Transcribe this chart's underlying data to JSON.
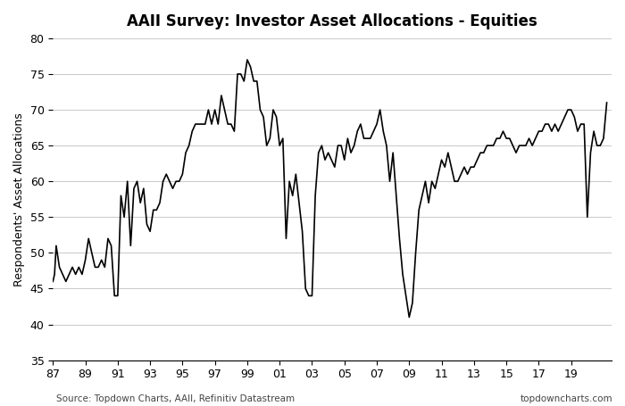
{
  "title": "AAII Survey: Investor Asset Allocations - Equities",
  "ylabel": "Respondents' Asset Allocations",
  "source_left": "Source: Topdown Charts, AAll, Refinitiv Datastream",
  "source_right": "topdowncharts.com",
  "ylim": [
    35,
    80
  ],
  "yticks": [
    35,
    40,
    45,
    50,
    55,
    60,
    65,
    70,
    75,
    80
  ],
  "xtick_years": [
    1987,
    1989,
    1991,
    1993,
    1995,
    1997,
    1999,
    2001,
    2003,
    2005,
    2007,
    2009,
    2011,
    2013,
    2015,
    2017,
    2019
  ],
  "xtick_labels": [
    "87",
    "89",
    "91",
    "93",
    "95",
    "97",
    "99",
    "01",
    "03",
    "05",
    "07",
    "09",
    "11",
    "13",
    "15",
    "17",
    "19"
  ],
  "line_color": "#000000",
  "line_width": 1.2,
  "bg_color": "#ffffff",
  "grid_color": "#cccccc",
  "data": {
    "dates": [
      1987.0,
      1987.1,
      1987.2,
      1987.4,
      1987.6,
      1987.8,
      1988.0,
      1988.2,
      1988.4,
      1988.6,
      1988.8,
      1989.0,
      1989.2,
      1989.4,
      1989.6,
      1989.8,
      1990.0,
      1990.2,
      1990.4,
      1990.6,
      1990.8,
      1991.0,
      1991.2,
      1991.4,
      1991.6,
      1991.8,
      1992.0,
      1992.2,
      1992.4,
      1992.6,
      1992.8,
      1993.0,
      1993.2,
      1993.4,
      1993.6,
      1993.8,
      1994.0,
      1994.2,
      1994.4,
      1994.6,
      1994.8,
      1995.0,
      1995.2,
      1995.4,
      1995.6,
      1995.8,
      1996.0,
      1996.2,
      1996.4,
      1996.6,
      1996.8,
      1997.0,
      1997.2,
      1997.4,
      1997.6,
      1997.8,
      1998.0,
      1998.2,
      1998.4,
      1998.6,
      1998.8,
      1999.0,
      1999.2,
      1999.4,
      1999.6,
      1999.8,
      2000.0,
      2000.2,
      2000.4,
      2000.6,
      2000.8,
      2001.0,
      2001.2,
      2001.4,
      2001.6,
      2001.8,
      2002.0,
      2002.2,
      2002.4,
      2002.6,
      2002.8,
      2003.0,
      2003.2,
      2003.4,
      2003.6,
      2003.8,
      2004.0,
      2004.2,
      2004.4,
      2004.6,
      2004.8,
      2005.0,
      2005.2,
      2005.4,
      2005.6,
      2005.8,
      2006.0,
      2006.2,
      2006.4,
      2006.6,
      2006.8,
      2007.0,
      2007.2,
      2007.4,
      2007.6,
      2007.8,
      2008.0,
      2008.2,
      2008.4,
      2008.6,
      2008.8,
      2009.0,
      2009.2,
      2009.4,
      2009.6,
      2009.8,
      2010.0,
      2010.2,
      2010.4,
      2010.6,
      2010.8,
      2011.0,
      2011.2,
      2011.4,
      2011.6,
      2011.8,
      2012.0,
      2012.2,
      2012.4,
      2012.6,
      2012.8,
      2013.0,
      2013.2,
      2013.4,
      2013.6,
      2013.8,
      2014.0,
      2014.2,
      2014.4,
      2014.6,
      2014.8,
      2015.0,
      2015.2,
      2015.4,
      2015.6,
      2015.8,
      2016.0,
      2016.2,
      2016.4,
      2016.6,
      2016.8,
      2017.0,
      2017.2,
      2017.4,
      2017.6,
      2017.8,
      2018.0,
      2018.2,
      2018.4,
      2018.6,
      2018.8,
      2019.0,
      2019.2,
      2019.4,
      2019.6,
      2019.8,
      2020.0,
      2020.2,
      2020.4,
      2020.6,
      2020.8,
      2021.0,
      2021.2
    ],
    "values": [
      46,
      47,
      51,
      48,
      47,
      46,
      47,
      48,
      47,
      48,
      47,
      49,
      52,
      50,
      48,
      48,
      49,
      48,
      52,
      51,
      44,
      44,
      58,
      55,
      60,
      51,
      59,
      60,
      57,
      59,
      54,
      53,
      56,
      56,
      57,
      60,
      61,
      60,
      59,
      60,
      60,
      61,
      64,
      65,
      67,
      68,
      68,
      68,
      68,
      70,
      68,
      70,
      68,
      72,
      70,
      68,
      68,
      67,
      75,
      75,
      74,
      77,
      76,
      74,
      74,
      70,
      69,
      65,
      66,
      70,
      69,
      65,
      66,
      52,
      60,
      58,
      61,
      57,
      53,
      45,
      44,
      44,
      58,
      64,
      65,
      63,
      64,
      63,
      62,
      65,
      65,
      63,
      66,
      64,
      65,
      67,
      68,
      66,
      66,
      66,
      67,
      68,
      70,
      67,
      65,
      60,
      64,
      58,
      52,
      47,
      44,
      41,
      43,
      50,
      56,
      58,
      60,
      57,
      60,
      59,
      61,
      63,
      62,
      64,
      62,
      60,
      60,
      61,
      62,
      61,
      62,
      62,
      63,
      64,
      64,
      65,
      65,
      65,
      66,
      66,
      67,
      66,
      66,
      65,
      64,
      65,
      65,
      65,
      66,
      65,
      66,
      67,
      67,
      68,
      68,
      67,
      68,
      67,
      68,
      69,
      70,
      70,
      69,
      67,
      68,
      68,
      55,
      64,
      67,
      65,
      65,
      66,
      71
    ]
  }
}
